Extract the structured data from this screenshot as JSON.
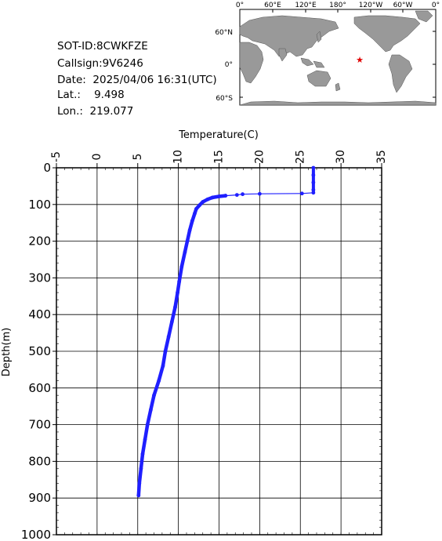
{
  "info": {
    "sot_id": "SOT-ID:8CWKFZE",
    "callsign": "Callsign:9V6246",
    "date": "Date:  2025/04/06 16:31(UTC)",
    "lat": "Lat.:    9.498",
    "lon": "Lon.:  219.077"
  },
  "map": {
    "top_labels": [
      "0°",
      "60°E",
      "120°E",
      "180°",
      "120°W",
      "60°W",
      "0°"
    ],
    "left_labels": [
      "60°N",
      "0°",
      "60°S"
    ],
    "marker_color": "#e00000",
    "ocean_color": "#ffffff",
    "land_color": "#999999"
  },
  "chart_data": {
    "type": "line",
    "title": "",
    "xlabel": "Temperature(C)",
    "ylabel": "Depth(m)",
    "xlim": [
      -5,
      35
    ],
    "ylim": [
      1000,
      0
    ],
    "x_ticks": [
      "-5",
      "0",
      "5",
      "10",
      "15",
      "20",
      "25",
      "30",
      "35"
    ],
    "y_ticks": [
      "0",
      "100",
      "200",
      "300",
      "400",
      "500",
      "600",
      "700",
      "800",
      "900",
      "1000"
    ],
    "grid": true,
    "series": [
      {
        "color": "#1f1fff",
        "points": [
          [
            26.6,
            0
          ],
          [
            26.6,
            20
          ],
          [
            26.6,
            40
          ],
          [
            26.6,
            60
          ],
          [
            26.6,
            68
          ],
          [
            25.2,
            70
          ],
          [
            20.0,
            71
          ],
          [
            17.9,
            72
          ],
          [
            17.2,
            74
          ],
          [
            15.8,
            76
          ],
          [
            15.0,
            78
          ],
          [
            14.2,
            81
          ],
          [
            13.6,
            86
          ],
          [
            13.0,
            93
          ],
          [
            12.6,
            102
          ],
          [
            12.2,
            112
          ],
          [
            12.0,
            125
          ],
          [
            11.7,
            145
          ],
          [
            11.4,
            170
          ],
          [
            11.1,
            200
          ],
          [
            10.8,
            230
          ],
          [
            10.4,
            270
          ],
          [
            10.1,
            310
          ],
          [
            9.9,
            340
          ],
          [
            9.6,
            380
          ],
          [
            9.2,
            420
          ],
          [
            8.8,
            460
          ],
          [
            8.4,
            500
          ],
          [
            8.1,
            540
          ],
          [
            7.6,
            580
          ],
          [
            7.0,
            620
          ],
          [
            6.6,
            660
          ],
          [
            6.2,
            700
          ],
          [
            5.9,
            740
          ],
          [
            5.6,
            780
          ],
          [
            5.4,
            820
          ],
          [
            5.2,
            860
          ],
          [
            5.1,
            893
          ]
        ]
      }
    ]
  }
}
